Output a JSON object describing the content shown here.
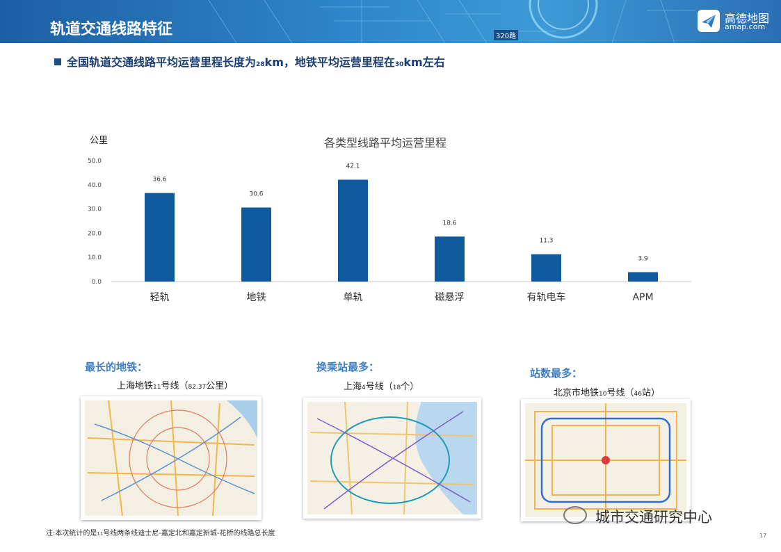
{
  "header": {
    "title": "轨道交通线路特征",
    "logo_name": "高德地图",
    "logo_url": "amap.com",
    "road_tag": "320路"
  },
  "headline": {
    "part1": "全国轨道交通线路平均运营里程长度为",
    "value1": "28",
    "part2": "km，地铁平均运营里程在",
    "value2": "30",
    "part3": "km左右"
  },
  "chart_data": {
    "type": "bar",
    "title": "各类型线路平均运营里程",
    "ylabel": "公里",
    "categories": [
      "轻轨",
      "地铁",
      "单轨",
      "磁悬浮",
      "有轨电车",
      "APM"
    ],
    "values": [
      36.6,
      30.6,
      42.1,
      18.6,
      11.3,
      3.9
    ],
    "data_labels": [
      "36.6",
      "30.6",
      "42.1",
      "18.6",
      "11.3",
      "3.9"
    ],
    "ylim": [
      0,
      50
    ],
    "yticks": [
      0,
      10,
      20,
      30,
      40,
      50
    ],
    "ytick_labels": [
      "0.0",
      "10.0",
      "20.0",
      "30.0",
      "40.0",
      "50.0"
    ],
    "bar_color": "#0e5a9d",
    "grid": false,
    "legend": "none"
  },
  "cards": [
    {
      "heading": "最长的地铁：",
      "caption_a": "上海地铁",
      "caption_num": "11",
      "caption_b": "号线（",
      "caption_num2": "82.37",
      "caption_c": "公里）"
    },
    {
      "heading": "换乘站最多：",
      "caption_a": "上海",
      "caption_num": "4",
      "caption_b": "号线（",
      "caption_num2": "18",
      "caption_c": "个）"
    },
    {
      "heading": "站数最多：",
      "caption_a": "北京市地铁",
      "caption_num": "10",
      "caption_b": "号线（",
      "caption_num2": "46",
      "caption_c": "站）"
    }
  ],
  "note": {
    "a": "注:本次统计的是",
    "num": "11",
    "b": "号线两条线迪士尼-嘉定北和嘉定新城-花桥的线路总长度"
  },
  "watermark": "城市交通研究中心",
  "page_number": "17"
}
